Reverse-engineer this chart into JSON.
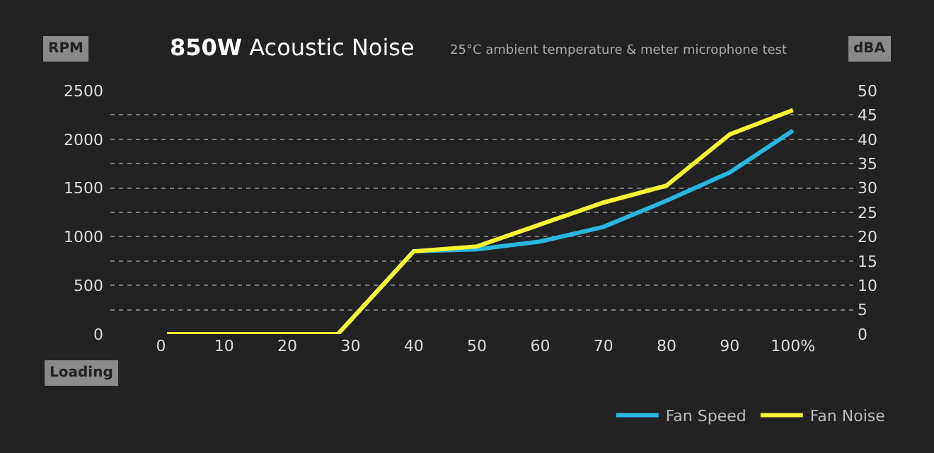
{
  "chart_data": {
    "type": "line",
    "title": "850W Acoustic Noise",
    "subtitle": "25°C ambient temperature & meter microphone test",
    "ylabel": "RPM",
    "y2label": "dBA",
    "xlabel": "Loading",
    "x": [
      1,
      28,
      40,
      50,
      60,
      70,
      80,
      90,
      100
    ],
    "series": [
      {
        "name": "Fan Speed",
        "color": "#29b6e0",
        "values": [
          0,
          0,
          850,
          870,
          950,
          1100,
          1370,
          1660,
          2090
        ]
      },
      {
        "name": "Fan Noise",
        "color": "#f5f532",
        "axis": "y2",
        "values": [
          0,
          0,
          17,
          18,
          22.5,
          27,
          30.5,
          41,
          46
        ]
      }
    ],
    "xlim": [
      -8,
      110
    ],
    "xticks": [
      0,
      10,
      20,
      30,
      40,
      50,
      60,
      70,
      80,
      90,
      {
        "value": 100,
        "label": "100%"
      }
    ],
    "ylim": [
      0,
      2500
    ],
    "yticks": [
      0,
      {
        "value": 250,
        "label": null
      },
      500,
      {
        "value": 750,
        "label": null
      },
      1000,
      {
        "value": 1250,
        "label": null
      },
      1500,
      {
        "value": 1750,
        "label": null
      },
      2000,
      {
        "value": 2250,
        "label": null
      },
      2500
    ],
    "y2lim": [
      0,
      50
    ],
    "y2ticks": [
      0,
      5,
      10,
      15,
      20,
      25,
      30,
      35,
      40,
      45,
      50
    ],
    "grid": "y",
    "legend": "bottom right",
    "marker": "none",
    "line_style": "solid"
  }
}
